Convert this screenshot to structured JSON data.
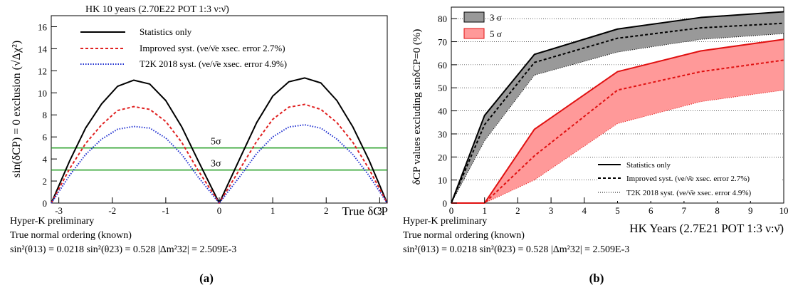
{
  "left": {
    "header": "HK 10 years (2.70E22 POT 1:3 ν:ν̄)",
    "ylabel": "sin(δCP) = 0 exclusion (√Δχ²)",
    "xlabel": "True δCP",
    "info_lines": [
      "Hyper-K preliminary",
      "True normal ordering (known)",
      "sin²(θ13) = 0.0218  sin²(θ23) = 0.528  |Δm²32| = 2.509E-3"
    ],
    "panel_label": "(a)",
    "threshold_labels": [
      "5σ",
      "3σ"
    ]
  },
  "right": {
    "ylabel": "δCP values excluding sinδCP=0 (%)",
    "xlabel": "HK Years (2.7E21 POT 1:3 ν:ν̄)",
    "info_lines": [
      "Hyper-K preliminary",
      "True normal ordering (known)",
      "sin²(θ13) = 0.0218  sin²(θ23) = 0.528  |Δm²32| = 2.509E-3"
    ],
    "panel_label": "(b)"
  },
  "chart_data": [
    {
      "type": "line",
      "title": "HK 10 years (2.70E22 POT 1:3 ν:ν̄)",
      "xlabel": "True δCP",
      "ylabel": "sin(δCP) = 0 exclusion (√Δχ²)",
      "xlim": [
        -3.1416,
        3.1416
      ],
      "ylim": [
        0,
        17
      ],
      "xticks": [
        -3,
        -2,
        -1,
        0,
        1,
        2,
        3
      ],
      "yticks": [
        0,
        2,
        4,
        6,
        8,
        10,
        12,
        14,
        16
      ],
      "grid": false,
      "legend_position": "top-center",
      "legend": [
        "Statistics only",
        "Improved syst. (νe/ν̄e xsec. error 2.7%)",
        "T2K 2018 syst. (νe/ν̄e xsec. error 4.9%)"
      ],
      "hlines": [
        {
          "label": "5σ",
          "y": 5,
          "color": "#1a9a1a"
        },
        {
          "label": "3σ",
          "y": 3,
          "color": "#1a9a1a"
        }
      ],
      "series": [
        {
          "name": "Statistics only",
          "color": "#000000",
          "style": "solid",
          "x": [
            -3.14,
            -2.8,
            -2.5,
            -2.2,
            -1.9,
            -1.6,
            -1.3,
            -1.0,
            -0.7,
            -0.4,
            0,
            0.4,
            0.7,
            1.0,
            1.3,
            1.6,
            1.9,
            2.2,
            2.5,
            2.8,
            3.14
          ],
          "y": [
            0,
            3.8,
            6.8,
            9.0,
            10.6,
            11.15,
            10.8,
            9.3,
            6.9,
            3.9,
            0,
            4.2,
            7.3,
            9.7,
            11.0,
            11.35,
            10.9,
            9.3,
            6.9,
            3.9,
            0
          ]
        },
        {
          "name": "Improved syst. (νe/ν̄e xsec. error 2.7%)",
          "color": "#e02020",
          "style": "dashed",
          "x": [
            -3.14,
            -2.8,
            -2.5,
            -2.2,
            -1.9,
            -1.6,
            -1.3,
            -1.0,
            -0.7,
            -0.4,
            0,
            0.4,
            0.7,
            1.0,
            1.3,
            1.6,
            1.9,
            2.2,
            2.5,
            2.8,
            3.14
          ],
          "y": [
            0,
            3.1,
            5.4,
            7.1,
            8.4,
            8.75,
            8.5,
            7.4,
            5.5,
            3.0,
            0,
            3.2,
            5.6,
            7.6,
            8.7,
            8.95,
            8.5,
            7.3,
            5.5,
            3.1,
            0
          ]
        },
        {
          "name": "T2K 2018 syst. (νe/ν̄e xsec. error 4.9%)",
          "color": "#2030d0",
          "style": "dotted",
          "x": [
            -3.14,
            -2.8,
            -2.5,
            -2.2,
            -1.9,
            -1.6,
            -1.3,
            -1.0,
            -0.7,
            -0.4,
            0,
            0.4,
            0.7,
            1.0,
            1.3,
            1.6,
            1.9,
            2.2,
            2.5,
            2.8,
            3.14
          ],
          "y": [
            0,
            2.5,
            4.4,
            5.8,
            6.7,
            6.95,
            6.8,
            5.9,
            4.4,
            2.4,
            0,
            2.5,
            4.5,
            6.0,
            6.9,
            7.1,
            6.8,
            5.8,
            4.4,
            2.5,
            0
          ]
        }
      ]
    },
    {
      "type": "area",
      "xlabel": "HK Years (2.7E21 POT 1:3 ν:ν̄)",
      "ylabel": "δCP values excluding sinδCP=0 (%)",
      "xlim": [
        0,
        10
      ],
      "ylim": [
        0,
        85
      ],
      "xticks": [
        0,
        1,
        2,
        3,
        4,
        5,
        6,
        7,
        8,
        9,
        10
      ],
      "yticks": [
        0,
        10,
        20,
        30,
        40,
        50,
        60,
        70,
        80
      ],
      "grid": true,
      "legend_position": "top-left",
      "bands_legend": [
        {
          "name": "3 σ",
          "color": "#999999"
        },
        {
          "name": "5 σ",
          "color": "#ff9999"
        }
      ],
      "lines_legend": [
        "Statistics only",
        "Improved syst. (νe/ν̄e xsec. error 2.7%)",
        "T2K 2018 syst. (νe/ν̄e xsec. error 4.9%)"
      ],
      "lines_legend_position": "bottom-right",
      "x": [
        0,
        1,
        2.5,
        5,
        7.5,
        10
      ],
      "series": [
        {
          "name": "3 σ",
          "band_color": "#999999",
          "line_color": "#000000",
          "stat": [
            0,
            38,
            64.5,
            75.5,
            80.5,
            83
          ],
          "improved": [
            0,
            34,
            61,
            71.5,
            76,
            78
          ],
          "t2k": [
            0,
            27,
            55.5,
            65.5,
            71,
            73.5
          ]
        },
        {
          "name": "5 σ",
          "band_color": "#ff9999",
          "line_color": "#e01010",
          "stat": [
            0,
            0,
            32,
            57,
            66,
            71
          ],
          "improved": [
            0,
            0,
            20.5,
            49,
            57,
            62
          ],
          "t2k": [
            0,
            0,
            10,
            34.5,
            44,
            49
          ]
        }
      ]
    }
  ]
}
